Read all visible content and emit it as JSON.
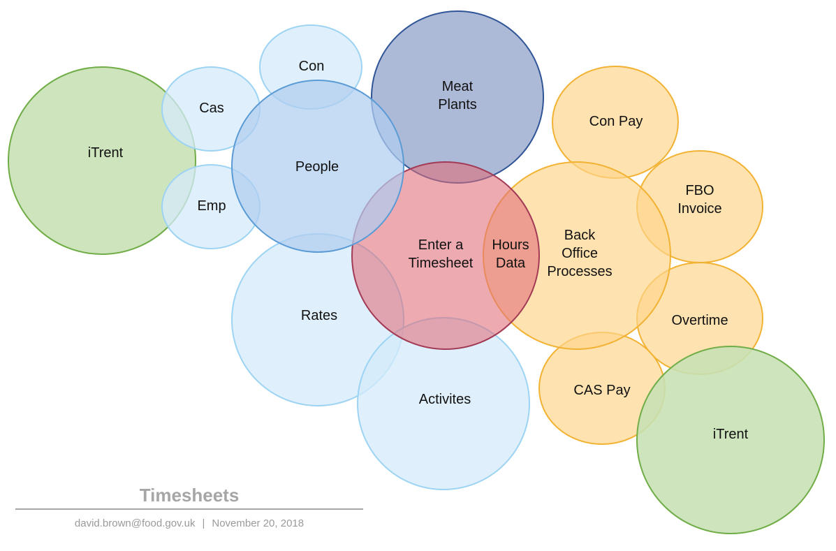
{
  "diagram": {
    "bubbles": [
      {
        "id": "itrent-left",
        "label": [
          "iTrent"
        ],
        "group": "system"
      },
      {
        "id": "cas",
        "label": [
          "Cas"
        ],
        "group": "people"
      },
      {
        "id": "emp",
        "label": [
          "Emp"
        ],
        "group": "people"
      },
      {
        "id": "con",
        "label": [
          "Con"
        ],
        "group": "people"
      },
      {
        "id": "rates",
        "label": [
          "Rates"
        ],
        "group": "people"
      },
      {
        "id": "people",
        "label": [
          "People"
        ],
        "group": "people_core"
      },
      {
        "id": "meat-plants",
        "label": [
          "Meat",
          "Plants"
        ],
        "group": "plants"
      },
      {
        "id": "activites",
        "label": [
          "Activites"
        ],
        "group": "people"
      },
      {
        "id": "con-pay",
        "label": [
          "Con Pay"
        ],
        "group": "back_office"
      },
      {
        "id": "fbo-invoice",
        "label": [
          "FBO",
          "Invoice"
        ],
        "group": "back_office"
      },
      {
        "id": "overtime",
        "label": [
          "Overtime"
        ],
        "group": "back_office"
      },
      {
        "id": "cas-pay",
        "label": [
          "CAS Pay"
        ],
        "group": "back_office"
      },
      {
        "id": "back-office",
        "label": [
          "Back",
          "Office",
          "Processes"
        ],
        "group": "back_office"
      },
      {
        "id": "enter-timesheet",
        "label": [
          "Enter a",
          "Timesheet"
        ],
        "group": "timesheet"
      },
      {
        "id": "hours-data",
        "label": [
          "Hours",
          "Data"
        ],
        "group": "label_only"
      },
      {
        "id": "itrent-right",
        "label": [
          "iTrent"
        ],
        "group": "system"
      }
    ],
    "colors": {
      "system": {
        "fill": "#c6e0b4",
        "stroke": "#70ad47"
      },
      "people": {
        "fill": "#d4ebfb",
        "stroke": "#9dd3f3"
      },
      "people_core": {
        "fill": "#b0cdf0",
        "stroke": "#5b9bd5"
      },
      "plants": {
        "fill": "#8e9fc7",
        "stroke": "#2f5597"
      },
      "back_office": {
        "fill": "#fdd48a",
        "stroke": "#f2b233"
      },
      "timesheet": {
        "fill": "#e06d79",
        "stroke": "#a33a55"
      }
    }
  },
  "footer": {
    "title": "Timesheets",
    "author": "david.brown@food.gov.uk",
    "separator": "|",
    "date": "November 20, 2018"
  }
}
